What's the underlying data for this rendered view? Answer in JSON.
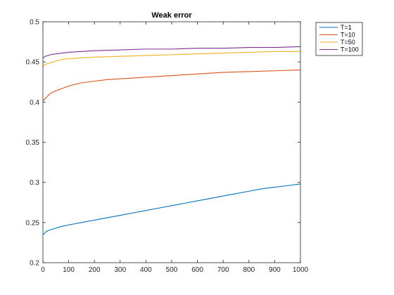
{
  "chart_data": {
    "type": "line",
    "title": "Weak error",
    "xlabel": "",
    "ylabel": "",
    "xlim": [
      0,
      1000
    ],
    "ylim": [
      0.2,
      0.5
    ],
    "xticks": [
      0,
      100,
      200,
      300,
      400,
      500,
      600,
      700,
      800,
      900,
      1000
    ],
    "yticks": [
      0.2,
      0.25,
      0.3,
      0.35,
      0.4,
      0.45,
      0.5
    ],
    "xtick_labels": [
      "0",
      "100",
      "200",
      "300",
      "400",
      "500",
      "600",
      "700",
      "800",
      "900",
      "1000"
    ],
    "ytick_labels": [
      "0.2",
      "0.25",
      "0.3",
      "0.35",
      "0.4",
      "0.45",
      "0.5"
    ],
    "grid": false,
    "legend_position": "outside-top-right",
    "series": [
      {
        "name": "T=1",
        "color": "#0072BD",
        "x": [
          0,
          5,
          10,
          20,
          30,
          50,
          70,
          100,
          150,
          200,
          250,
          300,
          350,
          400,
          450,
          500,
          550,
          600,
          650,
          700,
          750,
          800,
          850,
          900,
          950,
          1000
        ],
        "y": [
          0.235,
          0.236,
          0.238,
          0.24,
          0.241,
          0.243,
          0.245,
          0.247,
          0.25,
          0.253,
          0.256,
          0.259,
          0.262,
          0.265,
          0.268,
          0.271,
          0.274,
          0.277,
          0.28,
          0.283,
          0.286,
          0.289,
          0.292,
          0.294,
          0.296,
          0.298
        ]
      },
      {
        "name": "T=10",
        "color": "#D95319",
        "x": [
          0,
          5,
          10,
          20,
          30,
          50,
          75,
          100,
          150,
          200,
          250,
          300,
          400,
          500,
          600,
          700,
          800,
          900,
          1000
        ],
        "y": [
          0.401,
          0.403,
          0.405,
          0.408,
          0.411,
          0.414,
          0.417,
          0.42,
          0.424,
          0.426,
          0.428,
          0.429,
          0.431,
          0.433,
          0.435,
          0.437,
          0.438,
          0.439,
          0.44
        ]
      },
      {
        "name": "T=50",
        "color": "#EDB120",
        "x": [
          0,
          5,
          10,
          20,
          30,
          50,
          75,
          100,
          150,
          200,
          300,
          400,
          500,
          600,
          700,
          800,
          900,
          1000
        ],
        "y": [
          0.444,
          0.446,
          0.447,
          0.448,
          0.449,
          0.451,
          0.453,
          0.454,
          0.455,
          0.456,
          0.457,
          0.458,
          0.459,
          0.46,
          0.461,
          0.462,
          0.463,
          0.463
        ]
      },
      {
        "name": "T=100",
        "color": "#7E2F8E",
        "x": [
          0,
          5,
          10,
          20,
          30,
          50,
          75,
          100,
          150,
          200,
          300,
          400,
          500,
          600,
          700,
          800,
          900,
          1000
        ],
        "y": [
          0.455,
          0.456,
          0.457,
          0.458,
          0.459,
          0.46,
          0.461,
          0.462,
          0.463,
          0.464,
          0.465,
          0.466,
          0.466,
          0.467,
          0.467,
          0.468,
          0.468,
          0.469
        ]
      }
    ]
  }
}
